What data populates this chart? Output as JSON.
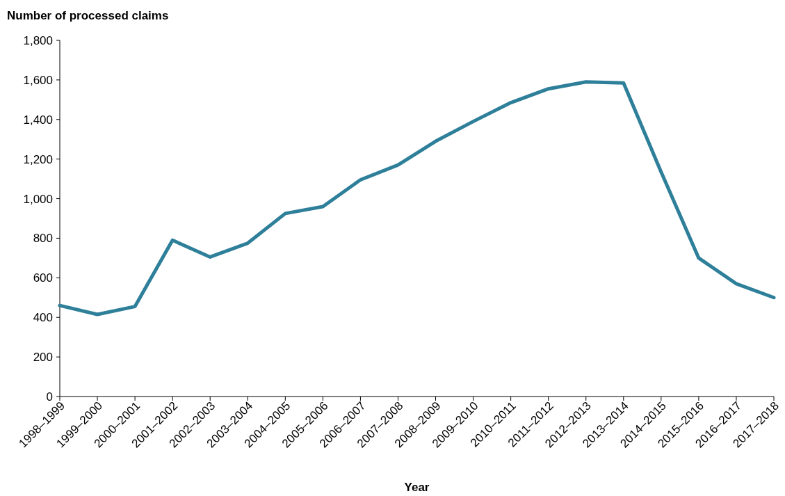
{
  "chart_data": {
    "type": "line",
    "ylabel": "Number of processed claims",
    "xlabel": "Year",
    "categories": [
      "1998–1999",
      "1999–2000",
      "2000–2001",
      "2001–2002",
      "2002–2003",
      "2003–2004",
      "2004–2005",
      "2005–2006",
      "2006–2007",
      "2007–2008",
      "2008–2009",
      "2009–2010",
      "2010–2011",
      "2011–2012",
      "2012–2013",
      "2013–2014",
      "2014–2015",
      "2015–2016",
      "2016–2017",
      "2017–2018"
    ],
    "series": [
      {
        "color": "#2e7f99",
        "values": [
          460,
          415,
          455,
          790,
          705,
          775,
          925,
          960,
          1095,
          1170,
          1290,
          1390,
          1485,
          1555,
          1590,
          1585,
          1135,
          700,
          570,
          500
        ]
      }
    ],
    "ylim": [
      0,
      1800
    ],
    "yticks": [
      {
        "value": 0,
        "label": "0"
      },
      {
        "value": 200,
        "label": "200"
      },
      {
        "value": 400,
        "label": "400"
      },
      {
        "value": 600,
        "label": "600"
      },
      {
        "value": 800,
        "label": "800"
      },
      {
        "value": 1000,
        "label": "1,000"
      },
      {
        "value": 1200,
        "label": "1,200"
      },
      {
        "value": 1400,
        "label": "1,400"
      },
      {
        "value": 1600,
        "label": "1,600"
      },
      {
        "value": 1800,
        "label": "1,800"
      }
    ],
    "grid": false,
    "marker": "none",
    "line_style": "solid"
  }
}
